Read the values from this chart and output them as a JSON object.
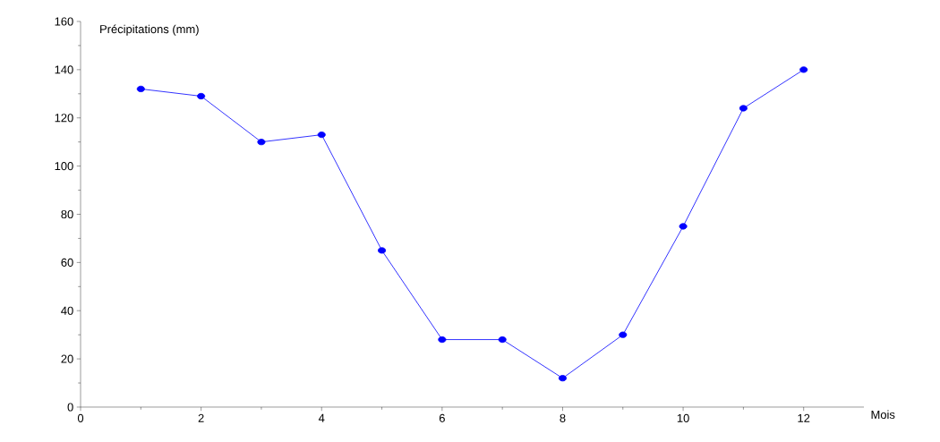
{
  "chart_data": {
    "type": "line",
    "xlabel": "Mois",
    "ylabel": "Précipitations (mm)",
    "x": [
      1,
      2,
      3,
      4,
      5,
      6,
      7,
      8,
      9,
      10,
      11,
      12
    ],
    "series": [
      {
        "color": "#0000ff",
        "values": [
          132,
          129,
          110,
          113,
          65,
          28,
          28,
          12,
          30,
          75,
          124,
          140
        ]
      }
    ],
    "xlim": [
      0,
      13
    ],
    "xticks": [
      0,
      2,
      4,
      6,
      8,
      10,
      12
    ],
    "ylim": [
      0,
      160
    ],
    "yticks": [
      0,
      20,
      40,
      60,
      80,
      100,
      120,
      140,
      160
    ],
    "grid": false,
    "marker": "circle",
    "line_style": "solid"
  }
}
